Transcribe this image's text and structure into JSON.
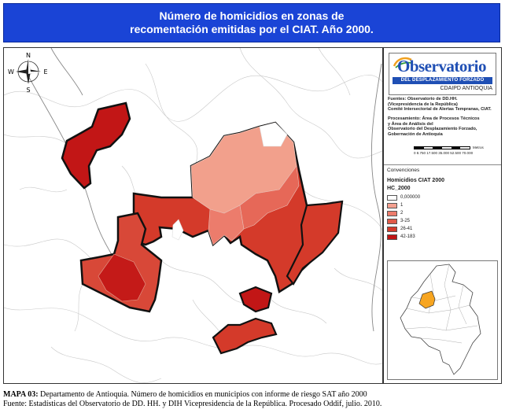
{
  "title": {
    "line1": "Número de homicidios en zonas de",
    "line2": "recomentación emitidas por el CIAT. Año 2000."
  },
  "compass": {
    "north": "N",
    "south": "S",
    "east": "E",
    "west": "W"
  },
  "logo": {
    "word": "Observatorio",
    "banner": "DEL DESPLAZAMIENTO FORZADO",
    "subtitle": "CDAIPD ANTIOQUIA"
  },
  "sources": {
    "line1": "Fuentes: Observatorio de DD.HH.",
    "line2": "(Vicepresidencia de la República)",
    "line3": "Comité Intersectorial de Alertas Tempranas, CIAT."
  },
  "processing": {
    "line1": "Procesamiento: Área de Procesos Técnicos",
    "line2": "y Área de Análisis del",
    "line3": "Observatorio del Desplazamiento Forzado,",
    "line4": "Gobernación de Antioquia"
  },
  "scale": {
    "ticks": "0 8.750 17.500 35.000 52.500 70.000",
    "unit": "Metros"
  },
  "legend": {
    "header": "Convenciones",
    "title": "Homicidios CIAT 2000",
    "field": "HC_2000",
    "items": [
      {
        "label": "0,000000",
        "color": "#ffffff"
      },
      {
        "label": "1",
        "color": "#f4a090"
      },
      {
        "label": "2",
        "color": "#ec7c6c"
      },
      {
        "label": "3-25",
        "color": "#e05a48"
      },
      {
        "label": "26-41",
        "color": "#d43a2a"
      },
      {
        "label": "42-183",
        "color": "#c01414"
      }
    ]
  },
  "caption": {
    "label": "MAPA 03:",
    "line1": " Departamento de Antioquia. Número de homicidios en municipios con informe de riesgo SAT año 2000",
    "line2": "Fuente: Estadísticas del Observatorio de DD. HH. y DIH Vicepresidencia de la República. Procesado Oddif, julio. 2010."
  },
  "colors": {
    "title_bg": "#1a44d6",
    "brand_blue": "#1f4fb4",
    "highlight_region": "#f7a520"
  }
}
